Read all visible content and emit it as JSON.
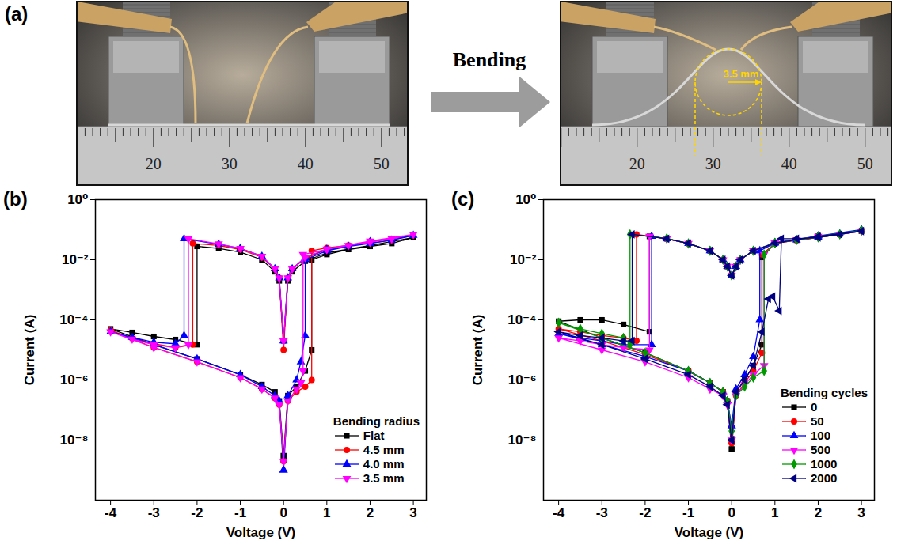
{
  "panel_a": {
    "label": "(a)",
    "arrow_label": "Bending",
    "radius_label": "3.5 mm",
    "ruler_labels": [
      20,
      30,
      40,
      50
    ]
  },
  "chart_data": [
    {
      "panel_label": "(b)",
      "type": "line",
      "x_label": "Voltage (V)",
      "y_label": "Current (A)",
      "log": "y",
      "xlim": [
        -4.35,
        3.3
      ],
      "xticks": [
        -4,
        -3,
        -2,
        -1,
        0,
        1,
        2,
        3
      ],
      "ylim": [
        1e-10,
        1
      ],
      "yticks": [
        {
          "value": 1e-08,
          "label": "10⁻⁸"
        },
        {
          "value": 1e-06,
          "label": "10⁻⁶"
        },
        {
          "value": 0.0001,
          "label": "10⁻⁴"
        },
        {
          "value": 0.01,
          "label": "10⁻²"
        },
        {
          "value": 1,
          "label": "10⁰"
        }
      ],
      "legend": "lower right",
      "legend_title": "Bending radius",
      "series": [
        {
          "name": "Flat",
          "color": "#000000",
          "marker": "square",
          "x": [
            0,
            0.1,
            0.3,
            0.5,
            0.65,
            0.65,
            1,
            1.5,
            2,
            2.5,
            3,
            2,
            1,
            0.5,
            0.2,
            0.1,
            0,
            -0.1,
            -0.2,
            -0.5,
            -1,
            -1.5,
            -2,
            -2,
            -2.5,
            -3,
            -3.5,
            -4,
            -3,
            -2,
            -1,
            -0.5,
            -0.2,
            -0.1,
            0
          ],
          "values": [
            3e-09,
            3e-07,
            6e-07,
            2e-06,
            1e-05,
            0.01,
            0.015,
            0.022,
            0.028,
            0.035,
            0.055,
            0.03,
            0.017,
            0.009,
            0.004,
            0.002,
            2e-05,
            0.002,
            0.004,
            0.01,
            0.018,
            0.024,
            0.028,
            1.5e-05,
            2.2e-05,
            2.8e-05,
            3.8e-05,
            5e-05,
            1.5e-05,
            5e-06,
            1.5e-06,
            7e-07,
            4e-07,
            2e-07,
            3e-09
          ]
        },
        {
          "name": "4.5 mm",
          "color": "#ff0000",
          "marker": "circle",
          "x": [
            0,
            0.1,
            0.3,
            0.5,
            0.65,
            0.65,
            1,
            1.5,
            2,
            2.5,
            3,
            2,
            1,
            0.5,
            0.2,
            0.1,
            0,
            -0.1,
            -0.2,
            -0.5,
            -1,
            -1.5,
            -2.1,
            -2.1,
            -2.5,
            -3,
            -3.5,
            -4,
            -3,
            -2,
            -1,
            -0.5,
            -0.2,
            -0.1,
            0
          ],
          "values": [
            2e-09,
            2e-07,
            4e-07,
            6e-07,
            1e-06,
            0.02,
            0.025,
            0.03,
            0.036,
            0.045,
            0.065,
            0.04,
            0.022,
            0.011,
            0.005,
            0.0025,
            1e-05,
            0.0025,
            0.005,
            0.012,
            0.022,
            0.03,
            0.035,
            1.5e-05,
            1.2e-05,
            1.6e-05,
            2.4e-05,
            4.5e-05,
            1.2e-05,
            4e-06,
            1.2e-06,
            5e-07,
            2.5e-07,
            1.5e-07,
            2e-09
          ]
        },
        {
          "name": "4.0 mm",
          "color": "#0000ff",
          "marker": "triangle-up",
          "x": [
            0,
            0.1,
            0.3,
            0.4,
            0.5,
            0.5,
            1,
            1.5,
            2,
            2.5,
            3,
            2,
            1,
            0.5,
            0.2,
            0.1,
            0,
            -0.1,
            -0.2,
            -0.5,
            -1,
            -1.5,
            -2.3,
            -2.3,
            -2.5,
            -3,
            -3.5,
            -4,
            -3,
            -2,
            -1,
            -0.5,
            -0.2,
            -0.1,
            0
          ],
          "values": [
            1e-09,
            3e-07,
            1e-06,
            4e-06,
            3e-05,
            0.01,
            0.02,
            0.028,
            0.035,
            0.045,
            0.065,
            0.04,
            0.022,
            0.012,
            0.005,
            0.0025,
            2e-05,
            0.0025,
            0.005,
            0.013,
            0.024,
            0.033,
            0.05,
            3e-05,
            1.6e-05,
            1.8e-05,
            2.6e-05,
            4e-05,
            1.5e-05,
            5e-06,
            1.5e-06,
            6e-07,
            3e-07,
            2e-07,
            1e-09
          ]
        },
        {
          "name": "3.5 mm",
          "color": "#ff00ff",
          "marker": "triangle-down",
          "x": [
            0,
            0.1,
            0.3,
            0.4,
            0.45,
            0.45,
            1,
            1.5,
            2,
            2.5,
            3,
            2,
            1,
            0.5,
            0.2,
            0.1,
            0,
            -0.1,
            -0.2,
            -0.5,
            -1,
            -1.5,
            -2.2,
            -2.2,
            -2.5,
            -3,
            -3.5,
            -4,
            -3,
            -2,
            -1,
            -0.5,
            -0.2,
            -0.1,
            0
          ],
          "values": [
            2e-09,
            2e-07,
            5e-07,
            8e-07,
            2e-06,
            0.015,
            0.022,
            0.03,
            0.038,
            0.05,
            0.07,
            0.042,
            0.023,
            0.012,
            0.005,
            0.0025,
            2e-05,
            0.0025,
            0.005,
            0.013,
            0.024,
            0.034,
            0.05,
            1.5e-05,
            1.2e-05,
            1.5e-05,
            2.3e-05,
            4e-05,
            1.2e-05,
            4e-06,
            1.2e-06,
            5e-07,
            2.5e-07,
            1.5e-07,
            2e-09
          ]
        }
      ]
    },
    {
      "panel_label": "(c)",
      "type": "line",
      "x_label": "Voltage (V)",
      "y_label": "Current (A)",
      "log": "y",
      "xlim": [
        -4.35,
        3.3
      ],
      "xticks": [
        -4,
        -3,
        -2,
        -1,
        0,
        1,
        2,
        3
      ],
      "ylim": [
        1e-10,
        1
      ],
      "yticks": [
        {
          "value": 1e-08,
          "label": "10⁻⁸"
        },
        {
          "value": 1e-06,
          "label": "10⁻⁶"
        },
        {
          "value": 0.0001,
          "label": "10⁻⁴"
        },
        {
          "value": 0.01,
          "label": "10⁻²"
        },
        {
          "value": 1,
          "label": "10⁰"
        }
      ],
      "legend": "lower right",
      "legend_title": "Bending cycles",
      "series": [
        {
          "name": "0",
          "color": "#000000",
          "marker": "square",
          "x": [
            0,
            0.1,
            0.3,
            0.5,
            0.7,
            0.7,
            1,
            1.5,
            2,
            2.5,
            3,
            2,
            1,
            0.5,
            0.2,
            0.1,
            0,
            -0.1,
            -0.2,
            -0.5,
            -1,
            -1.5,
            -1.9,
            -1.9,
            -2.5,
            -3,
            -3.5,
            -4,
            -3,
            -2,
            -1,
            -0.5,
            -0.2,
            -0.1,
            0
          ],
          "values": [
            5e-09,
            4e-07,
            1e-06,
            3e-06,
            1.5e-05,
            0.012,
            0.035,
            0.045,
            0.055,
            0.07,
            0.09,
            0.06,
            0.036,
            0.02,
            0.01,
            0.006,
            0.003,
            0.006,
            0.01,
            0.02,
            0.035,
            0.05,
            0.06,
            4e-05,
            7e-05,
            0.0001,
            0.0001,
            9e-05,
            2.5e-05,
            8e-06,
            2e-06,
            8e-07,
            4e-07,
            2e-07,
            5e-09
          ]
        },
        {
          "name": "50",
          "color": "#ff0000",
          "marker": "circle",
          "x": [
            0,
            0.1,
            0.3,
            0.5,
            0.7,
            0.7,
            1,
            1.5,
            2,
            2.5,
            3,
            2,
            1,
            0.5,
            0.2,
            0.1,
            0,
            -0.1,
            -0.2,
            -0.5,
            -1,
            -1.5,
            -2.2,
            -2.2,
            -2.5,
            -3,
            -3.5,
            -4,
            -3,
            -2,
            -1,
            -0.5,
            -0.2,
            -0.1,
            0
          ],
          "values": [
            8e-09,
            3e-07,
            8e-07,
            2e-06,
            8e-06,
            0.015,
            0.035,
            0.045,
            0.055,
            0.07,
            0.095,
            0.06,
            0.036,
            0.02,
            0.01,
            0.006,
            0.003,
            0.006,
            0.01,
            0.02,
            0.035,
            0.05,
            0.07,
            2e-05,
            2.5e-05,
            3e-05,
            4e-05,
            5e-05,
            2e-05,
            7e-06,
            2e-06,
            8e-07,
            4e-07,
            2e-07,
            8e-09
          ]
        },
        {
          "name": "100",
          "color": "#0000ff",
          "marker": "triangle-up",
          "x": [
            0,
            0.1,
            0.3,
            0.5,
            0.65,
            0.65,
            1,
            1.5,
            2,
            2.5,
            3,
            2,
            1,
            0.5,
            0.2,
            0.1,
            0,
            -0.1,
            -0.2,
            -0.5,
            -1,
            -1.5,
            -1.85,
            -1.85,
            -2.5,
            -3,
            -3.5,
            -4,
            -3,
            -2,
            -1,
            -0.5,
            -0.2,
            -0.1,
            0
          ],
          "values": [
            3e-08,
            5e-07,
            1.5e-06,
            6e-06,
            0.0001,
            0.02,
            0.036,
            0.046,
            0.056,
            0.072,
            0.1,
            0.062,
            0.037,
            0.02,
            0.01,
            0.006,
            0.003,
            0.006,
            0.01,
            0.02,
            0.035,
            0.05,
            0.06,
            1.5e-05,
            1.5e-05,
            2e-05,
            2.5e-05,
            3.5e-05,
            1.5e-05,
            6e-06,
            2e-06,
            8e-07,
            4e-07,
            2e-07,
            3e-08
          ]
        },
        {
          "name": "500",
          "color": "#ff00ff",
          "marker": "triangle-down",
          "x": [
            0,
            0.1,
            0.3,
            0.5,
            0.75,
            0.75,
            1,
            1.5,
            2,
            2.5,
            3,
            2,
            1,
            0.5,
            0.2,
            0.1,
            0,
            -0.1,
            -0.2,
            -0.5,
            -1,
            -1.5,
            -1.9,
            -1.9,
            -2.5,
            -3,
            -3.5,
            -4,
            -3,
            -2,
            -1,
            -0.5,
            -0.2,
            -0.1,
            0
          ],
          "values": [
            1e-08,
            3e-07,
            7e-07,
            1.5e-06,
            3e-06,
            0.015,
            0.036,
            0.046,
            0.056,
            0.07,
            0.09,
            0.06,
            0.036,
            0.02,
            0.01,
            0.006,
            0.003,
            0.006,
            0.01,
            0.02,
            0.035,
            0.05,
            0.06,
            1e-05,
            1.2e-05,
            1.5e-05,
            2e-05,
            2.5e-05,
            1e-05,
            4e-06,
            1.2e-06,
            5e-07,
            3e-07,
            1.5e-07,
            1e-08
          ]
        },
        {
          "name": "1000",
          "color": "#009900",
          "marker": "diamond",
          "x": [
            0,
            0.1,
            0.3,
            0.5,
            0.75,
            0.75,
            1,
            1.5,
            2,
            2.5,
            3,
            2,
            1,
            0.5,
            0.2,
            0.1,
            0,
            -0.1,
            -0.2,
            -0.5,
            -1,
            -1.5,
            -2.35,
            -2.35,
            -2.5,
            -3,
            -3.5,
            -4,
            -3,
            -2,
            -1,
            -0.5,
            -0.2,
            -0.1,
            0
          ],
          "values": [
            2e-08,
            3e-07,
            6e-07,
            1.2e-06,
            2e-06,
            0.015,
            0.036,
            0.046,
            0.056,
            0.07,
            0.095,
            0.06,
            0.036,
            0.02,
            0.01,
            0.006,
            0.003,
            0.006,
            0.01,
            0.02,
            0.035,
            0.052,
            0.07,
            1.5e-05,
            2.5e-05,
            3.5e-05,
            5e-05,
            8e-05,
            2.5e-05,
            8e-06,
            2e-06,
            8e-07,
            4e-07,
            2e-07,
            2e-08
          ]
        },
        {
          "name": "2000",
          "color": "#000080",
          "marker": "triangle-left",
          "x": [
            0,
            0.1,
            0.3,
            0.5,
            0.7,
            0.85,
            0.95,
            1.1,
            1.15,
            1.5,
            2,
            2.5,
            3,
            2,
            1,
            0.5,
            0.2,
            0.1,
            0,
            -0.1,
            -0.2,
            -0.5,
            -1,
            -1.5,
            -2.3,
            -2.3,
            -2.5,
            -3,
            -3.5,
            -4,
            -3,
            -2,
            -1,
            -0.5,
            -0.2,
            -0.1,
            0
          ],
          "values": [
            1e-08,
            4e-07,
            1e-06,
            3e-06,
            4e-05,
            0.0005,
            0.0006,
            0.0002,
            0.05,
            0.05,
            0.055,
            0.07,
            0.09,
            0.06,
            0.036,
            0.02,
            0.01,
            0.006,
            0.003,
            0.006,
            0.01,
            0.02,
            0.035,
            0.05,
            0.07,
            2e-05,
            2e-05,
            2.5e-05,
            3e-05,
            4e-05,
            1.5e-05,
            5e-06,
            1.5e-06,
            6e-07,
            3e-07,
            1.5e-07,
            1e-08
          ]
        }
      ]
    }
  ]
}
